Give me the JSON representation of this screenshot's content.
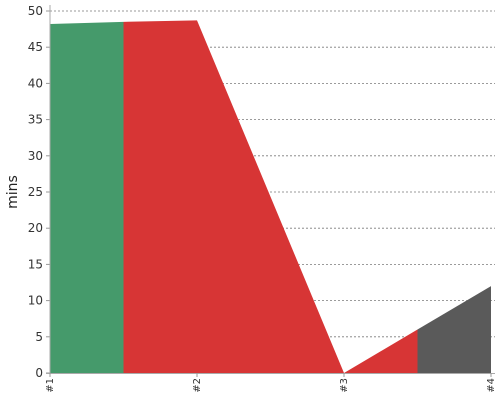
{
  "chart_data": {
    "type": "area",
    "title": "",
    "xlabel": "",
    "ylabel": "mins",
    "ylim": [
      0,
      50
    ],
    "y_ticks": [
      0,
      5,
      10,
      15,
      20,
      25,
      30,
      35,
      40,
      45,
      50
    ],
    "x_ticks": [
      "#1",
      "#2",
      "#3",
      "#4"
    ],
    "grid": "horizontal-dashed",
    "legend": "none",
    "segments": [
      {
        "color": "#459A6B",
        "points": [
          [
            1,
            48.2
          ],
          [
            1.5,
            48.5
          ]
        ]
      },
      {
        "color": "#D73535",
        "points": [
          [
            1.5,
            48.5
          ],
          [
            2,
            48.7
          ],
          [
            3,
            0
          ],
          [
            3.5,
            6.0
          ]
        ]
      },
      {
        "color": "#5A5A5A",
        "points": [
          [
            3.5,
            6.0
          ],
          [
            4,
            12.0
          ]
        ]
      }
    ]
  }
}
